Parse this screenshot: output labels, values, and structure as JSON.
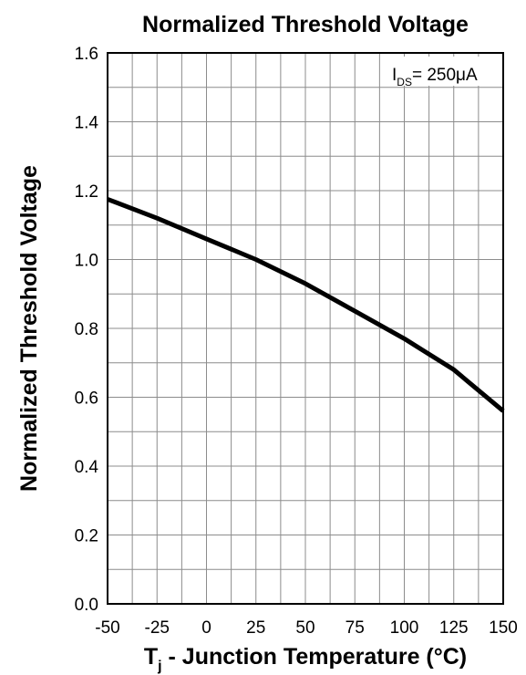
{
  "chart_data": {
    "type": "line",
    "title": "Normalized Threshold Voltage",
    "xlabel": {
      "main": "T",
      "sub": "j",
      "rest": " - Junction Temperature (°C)"
    },
    "ylabel": "Normalized Threshold Voltage",
    "xlim": [
      -50,
      150
    ],
    "ylim": [
      0.0,
      1.6
    ],
    "x_ticks": [
      "-50",
      "-25",
      "0",
      "25",
      "50",
      "75",
      "100",
      "125",
      "150"
    ],
    "y_ticks": [
      "0.0",
      "0.2",
      "0.4",
      "0.6",
      "0.8",
      "1.0",
      "1.2",
      "1.4",
      "1.6"
    ],
    "grid": true,
    "annotation": {
      "main": "I",
      "sub": "DS",
      "rest": "= 250μA"
    },
    "series": [
      {
        "x": [
          -50,
          -25,
          0,
          25,
          50,
          75,
          100,
          125,
          150
        ],
        "y": [
          1.175,
          1.12,
          1.06,
          1.0,
          0.93,
          0.85,
          0.77,
          0.68,
          0.56
        ]
      }
    ]
  }
}
